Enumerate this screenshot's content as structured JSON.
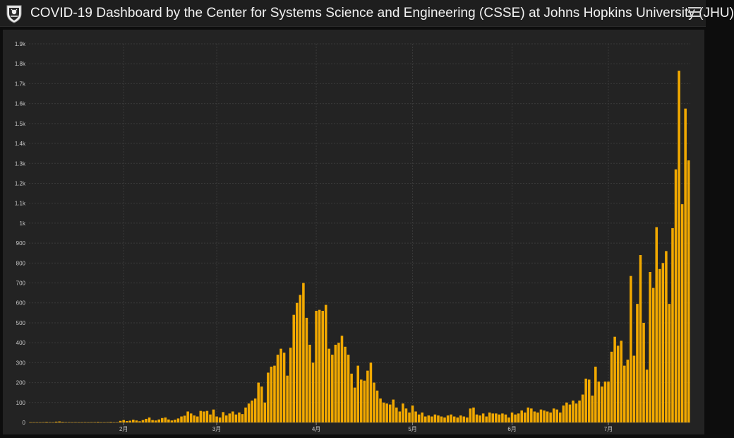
{
  "header": {
    "title": "COVID-19 Dashboard by the Center for Systems Science and Engineering (CSSE) at Johns Hopkins University (JHU)",
    "logo_icon": "jhu-shield-icon",
    "menu_icon": "hamburger-menu-icon"
  },
  "colors": {
    "bar": "#f2a900",
    "background": "#232323",
    "header": "#1e1e1e",
    "grid": "#3a3a3a",
    "tick_text": "#c8c8c8"
  },
  "chart_data": {
    "type": "bar",
    "title": "",
    "xlabel": "",
    "ylabel": "",
    "ylim": [
      0,
      1900
    ],
    "y_ticks": [
      {
        "value": 0,
        "label": "0"
      },
      {
        "value": 100,
        "label": "100"
      },
      {
        "value": 200,
        "label": "200"
      },
      {
        "value": 300,
        "label": "300"
      },
      {
        "value": 400,
        "label": "400"
      },
      {
        "value": 500,
        "label": "500"
      },
      {
        "value": 600,
        "label": "600"
      },
      {
        "value": 700,
        "label": "700"
      },
      {
        "value": 800,
        "label": "800"
      },
      {
        "value": 900,
        "label": "900"
      },
      {
        "value": 1000,
        "label": "1k"
      },
      {
        "value": 1100,
        "label": "1.1k"
      },
      {
        "value": 1200,
        "label": "1.2k"
      },
      {
        "value": 1300,
        "label": "1.3k"
      },
      {
        "value": 1400,
        "label": "1.4k"
      },
      {
        "value": 1500,
        "label": "1.5k"
      },
      {
        "value": 1600,
        "label": "1.6k"
      },
      {
        "value": 1700,
        "label": "1.7k"
      },
      {
        "value": 1800,
        "label": "1.8k"
      },
      {
        "value": 1900,
        "label": "1.9k"
      }
    ],
    "x_ticks": [
      {
        "index": 29,
        "label": "2月"
      },
      {
        "index": 58,
        "label": "3月"
      },
      {
        "index": 89,
        "label": "4月"
      },
      {
        "index": 119,
        "label": "5月"
      },
      {
        "index": 150,
        "label": "6月"
      },
      {
        "index": 180,
        "label": "7月"
      }
    ],
    "grid": true,
    "values": [
      1,
      1,
      1,
      1,
      2,
      3,
      2,
      1,
      4,
      5,
      3,
      2,
      2,
      1,
      2,
      1,
      1,
      2,
      1,
      2,
      2,
      3,
      1,
      1,
      2,
      3,
      1,
      2,
      8,
      12,
      7,
      9,
      14,
      10,
      6,
      12,
      18,
      25,
      12,
      10,
      15,
      22,
      25,
      15,
      10,
      14,
      20,
      30,
      34,
      55,
      45,
      35,
      30,
      58,
      55,
      58,
      40,
      65,
      30,
      25,
      52,
      35,
      45,
      55,
      40,
      50,
      42,
      75,
      95,
      110,
      120,
      200,
      180,
      100,
      250,
      280,
      285,
      340,
      370,
      350,
      235,
      375,
      540,
      600,
      640,
      700,
      525,
      390,
      300,
      560,
      565,
      560,
      590,
      370,
      340,
      390,
      400,
      435,
      380,
      340,
      245,
      175,
      285,
      215,
      210,
      260,
      300,
      200,
      160,
      120,
      100,
      95,
      90,
      115,
      75,
      55,
      95,
      70,
      50,
      85,
      55,
      40,
      50,
      30,
      35,
      30,
      40,
      35,
      30,
      25,
      35,
      40,
      30,
      25,
      35,
      30,
      25,
      70,
      75,
      40,
      35,
      45,
      30,
      50,
      45,
      45,
      40,
      45,
      40,
      25,
      50,
      40,
      45,
      60,
      50,
      75,
      70,
      55,
      50,
      65,
      60,
      55,
      50,
      70,
      65,
      50,
      85,
      100,
      90,
      110,
      95,
      110,
      140,
      220,
      215,
      135,
      280,
      205,
      180,
      205,
      205,
      355,
      430,
      385,
      410,
      285,
      315,
      735,
      335,
      595,
      840,
      500,
      265,
      755,
      675,
      980,
      770,
      800,
      860,
      595,
      975,
      1270,
      1765,
      1095,
      1575,
      1315
    ]
  }
}
